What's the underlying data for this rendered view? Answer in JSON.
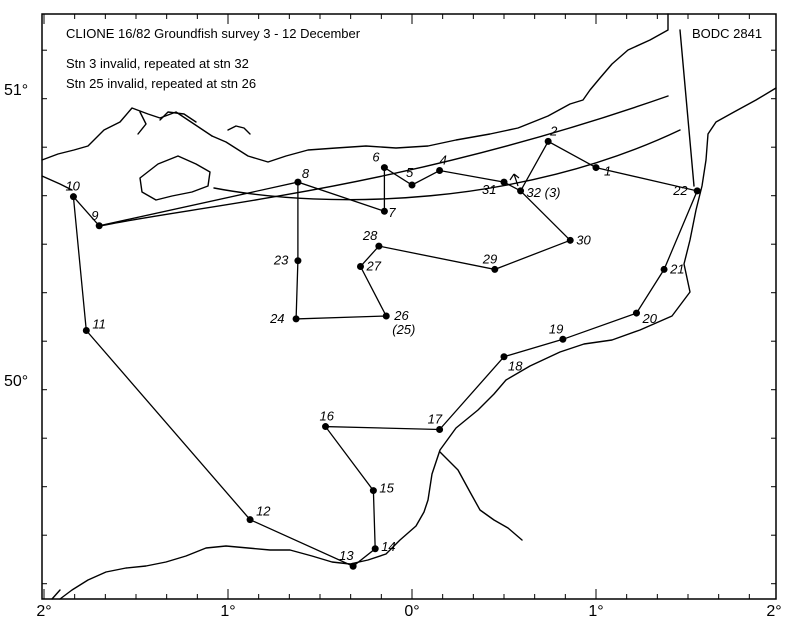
{
  "map": {
    "title": "CLIONE 16/82  Groundfish survey  3 - 12 December",
    "reference": "BODC 2841",
    "notes": [
      "Stn 3   invalid, repeated at stn 32",
      "Stn 25 invalid, repeated at stn 26"
    ],
    "x_axis_ticks": [
      {
        "label": "2°",
        "lon": -2
      },
      {
        "label": "1°",
        "lon": -1
      },
      {
        "label": "0°",
        "lon": 0
      },
      {
        "label": "1°",
        "lon": 1
      },
      {
        "label": "2°",
        "lon": 2
      }
    ],
    "y_axis_ticks": [
      {
        "label": "51°",
        "lat": 51
      },
      {
        "label": "50°",
        "lat": 50
      }
    ],
    "stations": [
      {
        "id": "1",
        "label": "1",
        "lon": 1.0,
        "lat": 50.73
      },
      {
        "id": "2",
        "label": "2",
        "lon": 0.74,
        "lat": 50.82
      },
      {
        "id": "4",
        "label": "4",
        "lon": 0.15,
        "lat": 50.72
      },
      {
        "id": "5",
        "label": "5",
        "lon": 0.0,
        "lat": 50.67
      },
      {
        "id": "6",
        "label": "6",
        "lon": -0.15,
        "lat": 50.73
      },
      {
        "id": "7",
        "label": "7",
        "lon": -0.15,
        "lat": 50.58
      },
      {
        "id": "8",
        "label": "8",
        "lon": -0.62,
        "lat": 50.68
      },
      {
        "id": "9",
        "label": "9",
        "lon": -1.7,
        "lat": 50.53
      },
      {
        "id": "10",
        "label": "10",
        "lon": -1.84,
        "lat": 50.63
      },
      {
        "id": "11",
        "label": "11",
        "lon": -1.77,
        "lat": 50.17
      },
      {
        "id": "12",
        "label": "12",
        "lon": -0.88,
        "lat": 49.52
      },
      {
        "id": "13",
        "label": "13",
        "lon": -0.32,
        "lat": 49.36
      },
      {
        "id": "14",
        "label": "14",
        "lon": -0.2,
        "lat": 49.42
      },
      {
        "id": "15",
        "label": "15",
        "lon": -0.21,
        "lat": 49.62
      },
      {
        "id": "16",
        "label": "16",
        "lon": -0.47,
        "lat": 49.84
      },
      {
        "id": "17",
        "label": "17",
        "lon": 0.15,
        "lat": 49.83
      },
      {
        "id": "18",
        "label": "18",
        "lon": 0.5,
        "lat": 50.08
      },
      {
        "id": "19",
        "label": "19",
        "lon": 0.82,
        "lat": 50.14
      },
      {
        "id": "20",
        "label": "20",
        "lon": 1.22,
        "lat": 50.23
      },
      {
        "id": "21",
        "label": "21",
        "lon": 1.37,
        "lat": 50.38
      },
      {
        "id": "22",
        "label": "22",
        "lon": 1.55,
        "lat": 50.65
      },
      {
        "id": "23",
        "label": "23",
        "lon": -0.62,
        "lat": 50.41
      },
      {
        "id": "24",
        "label": "24",
        "lon": -0.63,
        "lat": 50.21
      },
      {
        "id": "26",
        "label": "26",
        "sublabel": "(25)",
        "lon": -0.14,
        "lat": 50.22
      },
      {
        "id": "27",
        "label": "27",
        "lon": -0.28,
        "lat": 50.39
      },
      {
        "id": "28",
        "label": "28",
        "lon": -0.18,
        "lat": 50.46
      },
      {
        "id": "29",
        "label": "29",
        "lon": 0.45,
        "lat": 50.38
      },
      {
        "id": "30",
        "label": "30",
        "lon": 0.86,
        "lat": 50.48
      },
      {
        "id": "31",
        "label": "31",
        "lon": 0.5,
        "lat": 50.68
      },
      {
        "id": "32",
        "label": "32",
        "sublabel": "(3)",
        "lon": 0.59,
        "lat": 50.65
      }
    ],
    "track_order": [
      "1",
      "2",
      "32",
      "31",
      "4",
      "5",
      "6",
      "7",
      "8",
      "9",
      "10",
      "11",
      "12",
      "13",
      "14",
      "15",
      "16",
      "17",
      "18",
      "19",
      "20",
      "21",
      "22",
      "1"
    ],
    "track_order_2": [
      "30",
      "29",
      "28",
      "27",
      "26",
      "24",
      "23",
      "8"
    ],
    "track_order_3": [
      "32",
      "30"
    ]
  }
}
